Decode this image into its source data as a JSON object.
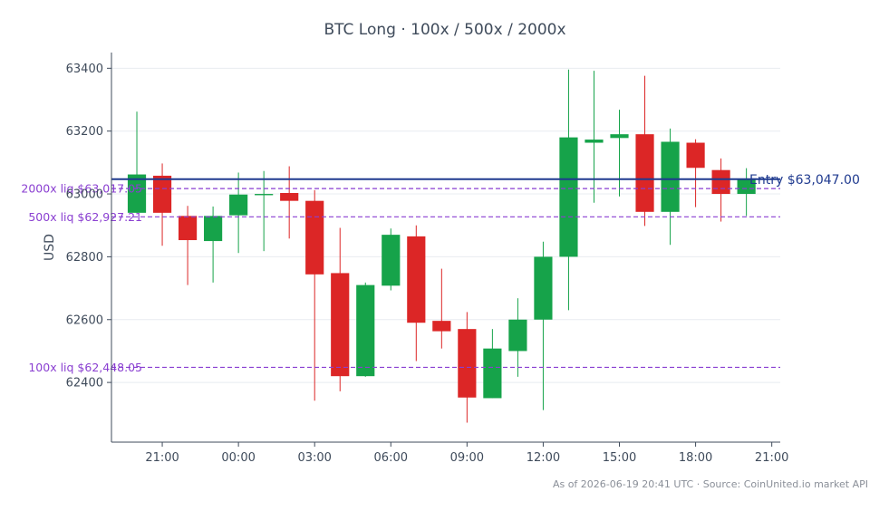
{
  "chart_data": {
    "type": "candlestick",
    "title": "BTC Long · 100x / 500x / 2000x",
    "ylabel": "USD",
    "ylim": [
      62210,
      63450
    ],
    "yticks": [
      62400,
      62600,
      62800,
      63000,
      63200,
      63400
    ],
    "ytick_labels": [
      "62400",
      "62600",
      "62800",
      "63000",
      "63200",
      "63400"
    ],
    "x_start": "2026-06-18 19:00",
    "x_end": "2026-06-19 21:20",
    "xticks": [
      "21:00",
      "00:00",
      "03:00",
      "06:00",
      "09:00",
      "12:00",
      "15:00",
      "18:00",
      "21:00"
    ],
    "colors": {
      "up": "#16a34a",
      "down": "#dc2626",
      "entry": "#1f3a8f",
      "liq": "#8a3fd1"
    },
    "candles": [
      {
        "t": "2026-06-18 20:00",
        "o": 62940,
        "h": 63262,
        "l": 62940,
        "c": 63062
      },
      {
        "t": "2026-06-18 21:00",
        "o": 63058,
        "h": 63097,
        "l": 62835,
        "c": 62940
      },
      {
        "t": "2026-06-18 22:00",
        "o": 62930,
        "h": 62962,
        "l": 62710,
        "c": 62853
      },
      {
        "t": "2026-06-18 23:00",
        "o": 62850,
        "h": 62960,
        "l": 62718,
        "c": 62930
      },
      {
        "t": "2026-06-19 00:00",
        "o": 62932,
        "h": 63068,
        "l": 62812,
        "c": 62998
      },
      {
        "t": "2026-06-19 01:00",
        "o": 62996,
        "h": 63073,
        "l": 62818,
        "c": 63000
      },
      {
        "t": "2026-06-19 02:00",
        "o": 63003,
        "h": 63088,
        "l": 62858,
        "c": 62978
      },
      {
        "t": "2026-06-19 03:00",
        "o": 62978,
        "h": 63012,
        "l": 62342,
        "c": 62744
      },
      {
        "t": "2026-06-19 04:00",
        "o": 62748,
        "h": 62892,
        "l": 62372,
        "c": 62420
      },
      {
        "t": "2026-06-19 05:00",
        "o": 62420,
        "h": 62718,
        "l": 62418,
        "c": 62710
      },
      {
        "t": "2026-06-19 06:00",
        "o": 62708,
        "h": 62890,
        "l": 62693,
        "c": 62870
      },
      {
        "t": "2026-06-19 07:00",
        "o": 62865,
        "h": 62900,
        "l": 62468,
        "c": 62590
      },
      {
        "t": "2026-06-19 08:00",
        "o": 62596,
        "h": 62762,
        "l": 62508,
        "c": 62563
      },
      {
        "t": "2026-06-19 09:00",
        "o": 62570,
        "h": 62624,
        "l": 62272,
        "c": 62352
      },
      {
        "t": "2026-06-19 10:00",
        "o": 62350,
        "h": 62570,
        "l": 62350,
        "c": 62508
      },
      {
        "t": "2026-06-19 11:00",
        "o": 62500,
        "h": 62668,
        "l": 62418,
        "c": 62600
      },
      {
        "t": "2026-06-19 12:00",
        "o": 62600,
        "h": 62848,
        "l": 62312,
        "c": 62800
      },
      {
        "t": "2026-06-19 13:00",
        "o": 62800,
        "h": 63396,
        "l": 62630,
        "c": 63180
      },
      {
        "t": "2026-06-19 14:00",
        "o": 63163,
        "h": 63392,
        "l": 62972,
        "c": 63173
      },
      {
        "t": "2026-06-19 15:00",
        "o": 63178,
        "h": 63268,
        "l": 62992,
        "c": 63190
      },
      {
        "t": "2026-06-19 16:00",
        "o": 63190,
        "h": 63376,
        "l": 62898,
        "c": 62943
      },
      {
        "t": "2026-06-19 17:00",
        "o": 62943,
        "h": 63208,
        "l": 62838,
        "c": 63166
      },
      {
        "t": "2026-06-19 18:00",
        "o": 63163,
        "h": 63174,
        "l": 62958,
        "c": 63083
      },
      {
        "t": "2026-06-19 19:00",
        "o": 63076,
        "h": 63113,
        "l": 62912,
        "c": 63000
      },
      {
        "t": "2026-06-19 20:00",
        "o": 63000,
        "h": 63082,
        "l": 62930,
        "c": 63047
      }
    ],
    "hlines": [
      {
        "label": "Entry $63,047.00",
        "value": 63047.0,
        "style": "solid"
      },
      {
        "label": "2000x liq $63,017.05",
        "value": 63017.05,
        "style": "dashed"
      },
      {
        "label": "500x liq $62,927.21",
        "value": 62927.21,
        "style": "dashed"
      },
      {
        "label": "100x liq $62,448.05",
        "value": 62448.05,
        "style": "dashed"
      }
    ],
    "footer": "As of 2026-06-19 20:41 UTC · Source: CoinUnited.io market API"
  }
}
